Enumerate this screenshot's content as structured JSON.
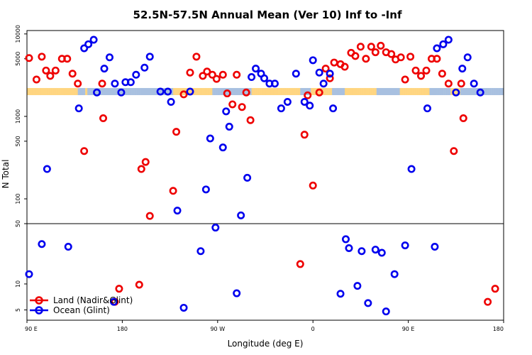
{
  "chart_data": {
    "type": "scatter",
    "title": "52.5N-57.5N Annual Mean (Ver 10)   Inf to -Inf",
    "xlabel": "Longitude (deg E)",
    "ylabel": "N Total",
    "x_ticks": [
      {
        "value": 0,
        "label": "90 E"
      },
      {
        "value": 90,
        "label": "180"
      },
      {
        "value": 180,
        "label": "90 W"
      },
      {
        "value": 270,
        "label": "0"
      },
      {
        "value": 360,
        "label": "90 E"
      },
      {
        "value": 450,
        "label": "180"
      }
    ],
    "xlim": [
      0,
      450
    ],
    "panels": [
      {
        "name": "upper",
        "scale": "log",
        "ylim": [
          50,
          11000
        ],
        "ticks": [
          {
            "value": 50,
            "label": "50"
          },
          {
            "value": 100,
            "label": "100"
          },
          {
            "value": 500,
            "label": "500"
          },
          {
            "value": 1000,
            "label": "1000"
          },
          {
            "value": 5000,
            "label": "5000"
          },
          {
            "value": 10000,
            "label": "10000"
          }
        ]
      },
      {
        "name": "lower",
        "scale": "log",
        "ylim": [
          3.8,
          50
        ],
        "ticks": [
          {
            "value": 5,
            "label": "5"
          },
          {
            "value": 10,
            "label": "10"
          }
        ]
      }
    ],
    "band": {
      "name": "surface mask",
      "level": 2000,
      "land_color": "#FFD580",
      "ocean_color": "#A8C0E0",
      "ocean_ranges": [
        [
          48,
          55
        ],
        [
          57,
          138
        ],
        [
          175,
          212
        ],
        [
          258,
          268
        ],
        [
          288,
          300
        ],
        [
          330,
          352
        ],
        [
          380,
          400
        ],
        [
          409,
          450
        ]
      ]
    },
    "series": [
      {
        "name": "Land (Nadir&Glint)",
        "color": "#EE0000",
        "points": [
          [
            2,
            5100
          ],
          [
            9,
            2800
          ],
          [
            14,
            5300
          ],
          [
            18,
            3600
          ],
          [
            22,
            3100
          ],
          [
            27,
            3600
          ],
          [
            33,
            5000
          ],
          [
            38,
            5000
          ],
          [
            43,
            3300
          ],
          [
            48,
            2500
          ],
          [
            54,
            380
          ],
          [
            71,
            2500
          ],
          [
            72,
            950
          ],
          [
            83,
            6.2
          ],
          [
            87,
            8.8
          ],
          [
            106,
            9.8
          ],
          [
            108,
            230
          ],
          [
            112,
            280
          ],
          [
            116,
            62
          ],
          [
            138,
            125
          ],
          [
            141,
            650
          ],
          [
            148,
            1850
          ],
          [
            154,
            3400
          ],
          [
            160,
            5300
          ],
          [
            166,
            3100
          ],
          [
            170,
            3500
          ],
          [
            175,
            3200
          ],
          [
            179,
            2850
          ],
          [
            185,
            3200
          ],
          [
            189,
            1900
          ],
          [
            194,
            1400
          ],
          [
            198,
            3200
          ],
          [
            203,
            1300
          ],
          [
            207,
            1950
          ],
          [
            211,
            900
          ],
          [
            258,
            17
          ],
          [
            262,
            600
          ],
          [
            265,
            1800
          ],
          [
            270,
            145
          ],
          [
            276,
            1950
          ],
          [
            282,
            3800
          ],
          [
            286,
            2900
          ],
          [
            290,
            4500
          ],
          [
            296,
            4300
          ],
          [
            300,
            4000
          ],
          [
            306,
            5900
          ],
          [
            310,
            5400
          ],
          [
            315,
            7000
          ],
          [
            320,
            5000
          ],
          [
            325,
            7000
          ],
          [
            329,
            6000
          ],
          [
            334,
            7200
          ],
          [
            339,
            6000
          ],
          [
            344,
            5700
          ],
          [
            348,
            4900
          ],
          [
            353,
            5200
          ],
          [
            357,
            2800
          ],
          [
            362,
            5300
          ],
          [
            367,
            3600
          ],
          [
            372,
            3100
          ],
          [
            377,
            3600
          ],
          [
            382,
            5000
          ],
          [
            387,
            5000
          ],
          [
            392,
            3300
          ],
          [
            398,
            2500
          ],
          [
            403,
            380
          ],
          [
            410,
            2500
          ],
          [
            412,
            950
          ],
          [
            435,
            6.2
          ],
          [
            442,
            8.8
          ]
        ]
      },
      {
        "name": "Ocean (Glint)",
        "color": "#0000EE",
        "points": [
          [
            2,
            13
          ],
          [
            14,
            29
          ],
          [
            19,
            230
          ],
          [
            39,
            27
          ],
          [
            49,
            1250
          ],
          [
            54,
            6700
          ],
          [
            58,
            7500
          ],
          [
            63,
            8500
          ],
          [
            66,
            1950
          ],
          [
            73,
            3800
          ],
          [
            78,
            5200
          ],
          [
            82,
            6.2
          ],
          [
            83,
            2500
          ],
          [
            89,
            1950
          ],
          [
            93,
            2600
          ],
          [
            98,
            2600
          ],
          [
            103,
            3200
          ],
          [
            111,
            3900
          ],
          [
            116,
            5300
          ],
          [
            126,
            2000
          ],
          [
            133,
            2000
          ],
          [
            136,
            1500
          ],
          [
            142,
            72
          ],
          [
            148,
            5.3
          ],
          [
            154,
            2000
          ],
          [
            164,
            24
          ],
          [
            169,
            130
          ],
          [
            173,
            540
          ],
          [
            178,
            45
          ],
          [
            185,
            420
          ],
          [
            188,
            1150
          ],
          [
            191,
            750
          ],
          [
            198,
            7.8
          ],
          [
            202,
            63
          ],
          [
            208,
            180
          ],
          [
            212,
            3000
          ],
          [
            216,
            3800
          ],
          [
            221,
            3300
          ],
          [
            224,
            2900
          ],
          [
            229,
            2500
          ],
          [
            234,
            2500
          ],
          [
            240,
            1250
          ],
          [
            246,
            1500
          ],
          [
            254,
            3300
          ],
          [
            262,
            1500
          ],
          [
            267,
            1350
          ],
          [
            270,
            4800
          ],
          [
            276,
            3400
          ],
          [
            280,
            2500
          ],
          [
            286,
            3300
          ],
          [
            289,
            1250
          ],
          [
            296,
            7.7
          ],
          [
            301,
            33
          ],
          [
            304,
            26
          ],
          [
            312,
            9.5
          ],
          [
            316,
            24
          ],
          [
            322,
            6
          ],
          [
            329,
            25
          ],
          [
            335,
            23
          ],
          [
            339,
            4.8
          ],
          [
            347,
            13
          ],
          [
            357,
            28
          ],
          [
            363,
            230
          ],
          [
            378,
            1250
          ],
          [
            385,
            27
          ],
          [
            387,
            6700
          ],
          [
            393,
            7500
          ],
          [
            398,
            8500
          ],
          [
            405,
            1950
          ],
          [
            411,
            3800
          ],
          [
            416,
            5200
          ],
          [
            422,
            2500
          ],
          [
            428,
            1950
          ]
        ]
      }
    ],
    "legend": {
      "position": "bottom-left"
    },
    "grid": false
  }
}
